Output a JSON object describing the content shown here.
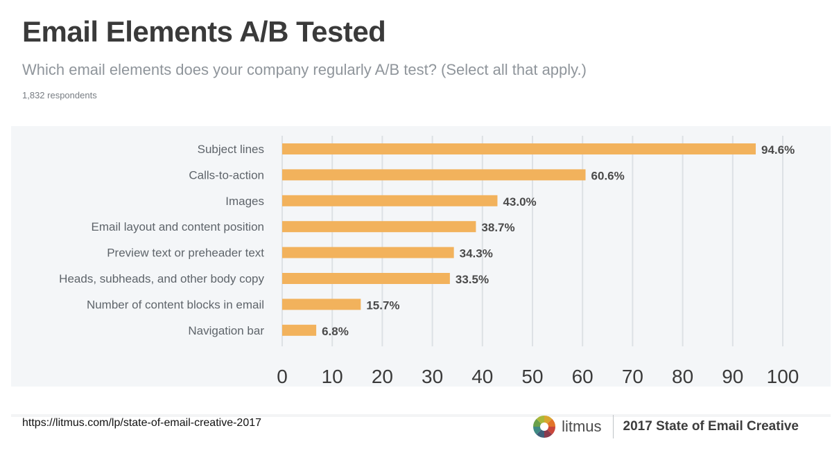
{
  "header": {
    "title": "Email Elements A/B Tested",
    "subtitle": "Which email elements does your company regularly A/B test? (Select all that apply.)",
    "respondents": "1,832 respondents"
  },
  "chart_data": {
    "type": "bar",
    "orientation": "horizontal",
    "categories": [
      "Subject lines",
      "Calls-to-action",
      "Images",
      "Email layout and content position",
      "Preview text or preheader text",
      "Heads, subheads, and other body copy",
      "Number of content blocks in email",
      "Navigation bar"
    ],
    "values": [
      94.6,
      60.6,
      43.0,
      38.7,
      34.3,
      33.5,
      15.7,
      6.8
    ],
    "value_labels": [
      "94.6%",
      "60.6%",
      "43.0%",
      "38.7%",
      "34.3%",
      "33.5%",
      "15.7%",
      "6.8%"
    ],
    "xlim": [
      0,
      100
    ],
    "x_ticks": [
      "0",
      "10",
      "20",
      "30",
      "40",
      "50",
      "60",
      "70",
      "80",
      "90",
      "100"
    ],
    "grid": true,
    "bar_color": "#f2b25c",
    "grid_color": "#dde1e5"
  },
  "footer": {
    "source_url": "https://litmus.com/lp/state-of-email-creative-2017",
    "brand_name": "litmus",
    "report_title": "2017 State of Email Creative"
  }
}
